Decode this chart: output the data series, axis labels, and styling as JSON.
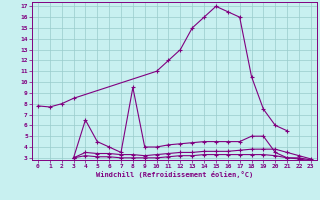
{
  "xlabel": "Windchill (Refroidissement éolien,°C)",
  "bg_color": "#c8f0f0",
  "line_color": "#800080",
  "grid_color": "#99cccc",
  "xlim": [
    -0.5,
    23.5
  ],
  "ylim": [
    2.8,
    17.4
  ],
  "yticks": [
    3,
    4,
    5,
    6,
    7,
    8,
    9,
    10,
    11,
    12,
    13,
    14,
    15,
    16,
    17
  ],
  "xticks": [
    0,
    1,
    2,
    3,
    4,
    5,
    6,
    7,
    8,
    9,
    10,
    11,
    12,
    13,
    14,
    15,
    16,
    17,
    18,
    19,
    20,
    21,
    22,
    23
  ],
  "series": [
    {
      "x": [
        0,
        1,
        2,
        3,
        10,
        11,
        12,
        13,
        14,
        15,
        16,
        17,
        18,
        19,
        20,
        21
      ],
      "y": [
        7.8,
        7.7,
        8.0,
        8.5,
        11.0,
        12.0,
        13.0,
        15.0,
        16.0,
        17.0,
        16.5,
        16.0,
        10.5,
        7.5,
        6.0,
        5.5
      ]
    },
    {
      "x": [
        3,
        4,
        5,
        6,
        7,
        8,
        9,
        10,
        11,
        12,
        13,
        14,
        15,
        16,
        17,
        18,
        19,
        20,
        21,
        22,
        23
      ],
      "y": [
        3.0,
        6.5,
        4.5,
        4.0,
        3.5,
        9.5,
        4.0,
        4.0,
        4.2,
        4.3,
        4.4,
        4.5,
        4.5,
        4.5,
        4.5,
        5.0,
        5.0,
        3.5,
        3.0,
        3.0,
        2.8
      ]
    },
    {
      "x": [
        3,
        4,
        5,
        6,
        7,
        8,
        9,
        10,
        11,
        12,
        13,
        14,
        15,
        16,
        17,
        18,
        19,
        20,
        21,
        22,
        23
      ],
      "y": [
        3.0,
        3.5,
        3.4,
        3.4,
        3.3,
        3.3,
        3.2,
        3.3,
        3.4,
        3.5,
        3.5,
        3.6,
        3.6,
        3.6,
        3.7,
        3.8,
        3.8,
        3.8,
        3.5,
        3.2,
        2.9
      ]
    },
    {
      "x": [
        3,
        4,
        5,
        6,
        7,
        8,
        9,
        10,
        11,
        12,
        13,
        14,
        15,
        16,
        17,
        18,
        19,
        20,
        21,
        22,
        23
      ],
      "y": [
        3.0,
        3.2,
        3.1,
        3.1,
        3.0,
        3.0,
        3.0,
        3.0,
        3.1,
        3.2,
        3.2,
        3.3,
        3.3,
        3.3,
        3.3,
        3.3,
        3.3,
        3.2,
        3.0,
        2.9,
        2.7
      ]
    }
  ]
}
